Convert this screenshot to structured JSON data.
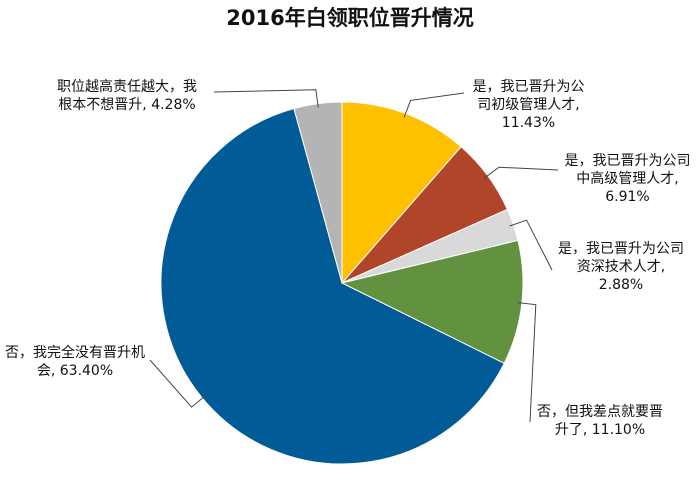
{
  "chart_data": {
    "type": "pie",
    "title": "2016年白领职位晋升情况",
    "categories": [
      "是，我已晋升为公司初级管理人才,",
      "是，我已晋升为公司中高级管理人才,",
      "是，我已晋升为公司资深技术人才,",
      "否，但我差点就要晋升了,",
      "否，我完全没有晋升机会,",
      "职位越高责任越大，我根本不想晋升,"
    ],
    "values": [
      11.43,
      6.91,
      2.88,
      11.1,
      63.4,
      4.28
    ],
    "value_labels": [
      "11.43%",
      "6.91%",
      "2.88%",
      "11.10%",
      "63.40%",
      "4.28%"
    ],
    "colors": [
      "#ffc000",
      "#b0452a",
      "#d9d9d9",
      "#62923f",
      "#005b96",
      "#b4b4b4"
    ]
  }
}
